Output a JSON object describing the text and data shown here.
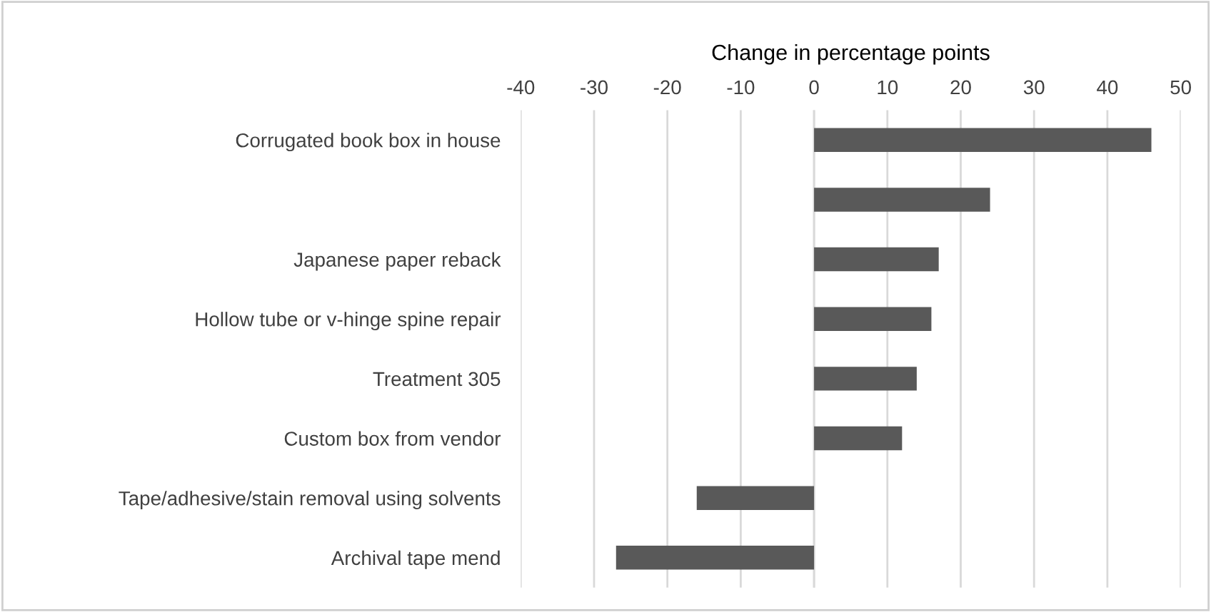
{
  "chart_data": {
    "type": "bar",
    "orientation": "horizontal",
    "xlabel": "Change in percentage points",
    "categories": [
      "Corrugated book box in house",
      null,
      "Japanese paper reback",
      "Hollow tube or v-hinge spine repair",
      "Treatment 305",
      "Custom box from vendor",
      "Tape/adhesive/stain removal using solvents",
      "Archival tape mend"
    ],
    "values": [
      46,
      24,
      17,
      16,
      14,
      12,
      -16,
      -27
    ],
    "color": "#595959",
    "xlim": [
      -40,
      50
    ],
    "xticks": [
      -40,
      -30,
      -20,
      -10,
      0,
      10,
      20,
      30,
      40,
      50
    ],
    "grid": "x"
  }
}
